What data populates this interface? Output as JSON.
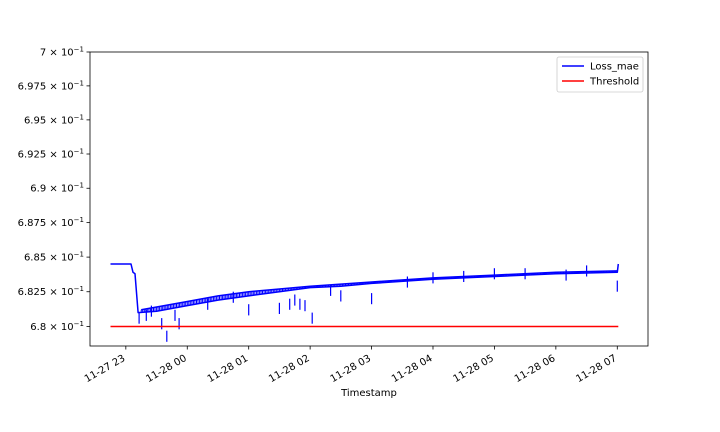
{
  "chart_data": {
    "type": "line",
    "title": "",
    "xlabel": "Timestamp",
    "ylabel": "",
    "y_scale": "log",
    "ylim": [
      0.6786,
      0.7
    ],
    "y_ticks": [
      {
        "value": 0.68,
        "mant": "6.8",
        "base": "10",
        "exp": "−1"
      },
      {
        "value": 0.6825,
        "mant": "6.825",
        "base": "10",
        "exp": "−1"
      },
      {
        "value": 0.685,
        "mant": "6.85",
        "base": "10",
        "exp": "−1"
      },
      {
        "value": 0.6875,
        "mant": "6.875",
        "base": "10",
        "exp": "−1"
      },
      {
        "value": 0.69,
        "mant": "6.9",
        "base": "10",
        "exp": "−1"
      },
      {
        "value": 0.6925,
        "mant": "6.925",
        "base": "10",
        "exp": "−1"
      },
      {
        "value": 0.695,
        "mant": "6.95",
        "base": "10",
        "exp": "−1"
      },
      {
        "value": 0.6975,
        "mant": "6.975",
        "base": "10",
        "exp": "−1"
      },
      {
        "value": 0.7,
        "mant": "7",
        "base": "10",
        "exp": "−1"
      }
    ],
    "xlim": [
      "2023-11-27 22:25",
      "2023-11-28 07:30"
    ],
    "x_ticks": [
      {
        "value": "2023-11-27 23:00",
        "label": "11-27 23"
      },
      {
        "value": "2023-11-28 00:00",
        "label": "11-28 00"
      },
      {
        "value": "2023-11-28 01:00",
        "label": "11-28 01"
      },
      {
        "value": "2023-11-28 02:00",
        "label": "11-28 02"
      },
      {
        "value": "2023-11-28 03:00",
        "label": "11-28 03"
      },
      {
        "value": "2023-11-28 04:00",
        "label": "11-28 04"
      },
      {
        "value": "2023-11-28 05:00",
        "label": "11-28 05"
      },
      {
        "value": "2023-11-28 06:00",
        "label": "11-28 06"
      },
      {
        "value": "2023-11-28 07:00",
        "label": "11-28 07"
      }
    ],
    "legend_position": "top-right",
    "grid": false,
    "series": [
      {
        "name": "Loss_mae",
        "color": "#0000ff",
        "points": [
          {
            "x": "2023-11-27 22:45",
            "y": 0.6845
          },
          {
            "x": "2023-11-27 23:05",
            "y": 0.6845
          },
          {
            "x": "2023-11-27 23:07",
            "y": 0.6839
          },
          {
            "x": "2023-11-27 23:09",
            "y": 0.6838
          },
          {
            "x": "2023-11-27 23:12",
            "y": 0.681
          },
          {
            "x": "2023-11-27 23:30",
            "y": 0.6811
          },
          {
            "x": "2023-11-28 00:00",
            "y": 0.6815
          },
          {
            "x": "2023-11-28 00:30",
            "y": 0.6819
          },
          {
            "x": "2023-11-28 01:00",
            "y": 0.6822
          },
          {
            "x": "2023-11-28 01:30",
            "y": 0.6825
          },
          {
            "x": "2023-11-28 02:00",
            "y": 0.6828
          },
          {
            "x": "2023-11-28 02:30",
            "y": 0.6829
          },
          {
            "x": "2023-11-28 03:00",
            "y": 0.6831
          },
          {
            "x": "2023-11-28 04:00",
            "y": 0.6834
          },
          {
            "x": "2023-11-28 05:00",
            "y": 0.6836
          },
          {
            "x": "2023-11-28 06:00",
            "y": 0.6838
          },
          {
            "x": "2023-11-28 07:00",
            "y": 0.6839
          },
          {
            "x": "2023-11-28 07:01",
            "y": 0.6845
          }
        ],
        "upper_band": [
          {
            "x": "2023-11-27 23:15",
            "y": 0.6812
          },
          {
            "x": "2023-11-27 23:30",
            "y": 0.6814
          },
          {
            "x": "2023-11-28 00:00",
            "y": 0.6818
          },
          {
            "x": "2023-11-28 00:30",
            "y": 0.6822
          },
          {
            "x": "2023-11-28 01:00",
            "y": 0.6825
          },
          {
            "x": "2023-11-28 01:30",
            "y": 0.6827
          },
          {
            "x": "2023-11-28 02:00",
            "y": 0.6829
          },
          {
            "x": "2023-11-28 03:00",
            "y": 0.6832
          },
          {
            "x": "2023-11-28 04:00",
            "y": 0.6835
          },
          {
            "x": "2023-11-28 05:00",
            "y": 0.6837
          },
          {
            "x": "2023-11-28 06:00",
            "y": 0.6839
          },
          {
            "x": "2023-11-28 07:00",
            "y": 0.684
          }
        ],
        "dips": [
          {
            "x": "2023-11-27 23:13",
            "y": 0.6802
          },
          {
            "x": "2023-11-27 23:20",
            "y": 0.6804
          },
          {
            "x": "2023-11-27 23:25",
            "y": 0.6807
          },
          {
            "x": "2023-11-27 23:35",
            "y": 0.6798
          },
          {
            "x": "2023-11-27 23:40",
            "y": 0.6789
          },
          {
            "x": "2023-11-27 23:48",
            "y": 0.6804
          },
          {
            "x": "2023-11-27 23:52",
            "y": 0.6798
          },
          {
            "x": "2023-11-28 00:20",
            "y": 0.6812
          },
          {
            "x": "2023-11-28 00:45",
            "y": 0.6817
          },
          {
            "x": "2023-11-28 01:00",
            "y": 0.6808
          },
          {
            "x": "2023-11-28 01:30",
            "y": 0.6809
          },
          {
            "x": "2023-11-28 01:40",
            "y": 0.6812
          },
          {
            "x": "2023-11-28 01:45",
            "y": 0.6815
          },
          {
            "x": "2023-11-28 01:50",
            "y": 0.6812
          },
          {
            "x": "2023-11-28 01:55",
            "y": 0.6811
          },
          {
            "x": "2023-11-28 02:02",
            "y": 0.6802
          },
          {
            "x": "2023-11-28 02:20",
            "y": 0.6822
          },
          {
            "x": "2023-11-28 02:30",
            "y": 0.6818
          },
          {
            "x": "2023-11-28 03:00",
            "y": 0.6816
          },
          {
            "x": "2023-11-28 03:35",
            "y": 0.6828
          },
          {
            "x": "2023-11-28 04:00",
            "y": 0.6831
          },
          {
            "x": "2023-11-28 04:30",
            "y": 0.6832
          },
          {
            "x": "2023-11-28 05:00",
            "y": 0.6834
          },
          {
            "x": "2023-11-28 05:30",
            "y": 0.6834
          },
          {
            "x": "2023-11-28 06:10",
            "y": 0.6833
          },
          {
            "x": "2023-11-28 06:30",
            "y": 0.6836
          },
          {
            "x": "2023-11-28 07:00",
            "y": 0.6825
          }
        ]
      },
      {
        "name": "Threshold",
        "color": "#ff0000",
        "points": [
          {
            "x": "2023-11-27 22:45",
            "y": 0.68
          },
          {
            "x": "2023-11-28 07:01",
            "y": 0.68
          }
        ]
      }
    ]
  }
}
